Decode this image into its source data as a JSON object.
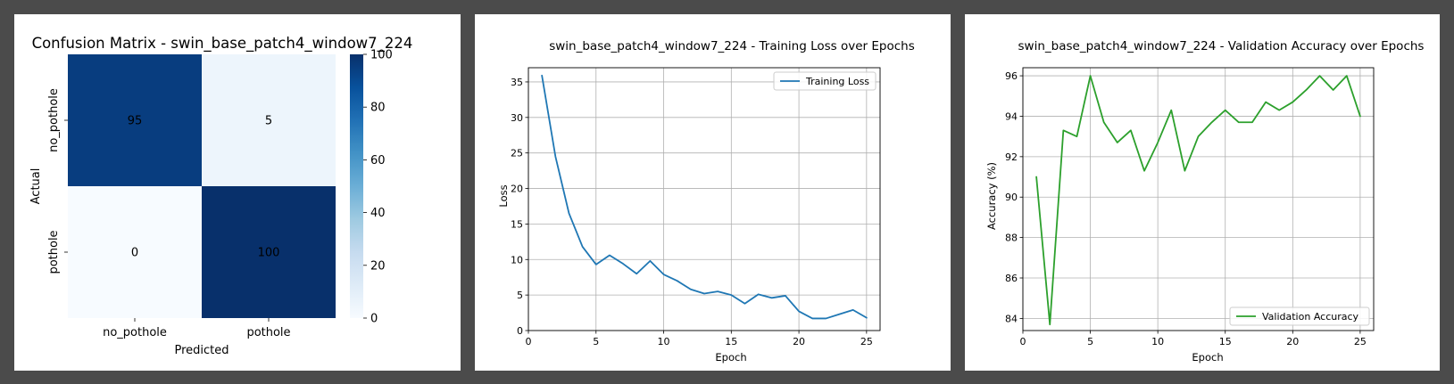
{
  "chart_data": [
    {
      "type": "heatmap",
      "title": "Confusion Matrix - swin_base_patch4_window7_224",
      "xlabel": "Predicted",
      "ylabel": "Actual",
      "x_categories": [
        "no_pothole",
        "pothole"
      ],
      "y_categories": [
        "no_pothole",
        "pothole"
      ],
      "values": [
        [
          95,
          5
        ],
        [
          0,
          100
        ]
      ],
      "colorbar_range": [
        0,
        100
      ],
      "colorbar_ticks": [
        0,
        20,
        40,
        60,
        80,
        100
      ],
      "colormap": "Blues"
    },
    {
      "type": "line",
      "title": "swin_base_patch4_window7_224 - Training Loss over Epochs",
      "xlabel": "Epoch",
      "ylabel": "Loss",
      "xlim": [
        0,
        26
      ],
      "ylim": [
        0,
        37
      ],
      "xticks": [
        0,
        5,
        10,
        15,
        20,
        25
      ],
      "yticks": [
        0,
        5,
        10,
        15,
        20,
        25,
        30,
        35
      ],
      "grid": true,
      "legend": "top-right",
      "series": [
        {
          "name": "Training Loss",
          "color": "#1f77b4",
          "x": [
            1,
            2,
            3,
            4,
            5,
            6,
            7,
            8,
            9,
            10,
            11,
            12,
            13,
            14,
            15,
            16,
            17,
            18,
            19,
            20,
            21,
            22,
            23,
            24,
            25
          ],
          "values": [
            35.9,
            24.5,
            16.5,
            11.8,
            9.3,
            10.6,
            9.4,
            8.0,
            9.8,
            7.9,
            7.0,
            5.8,
            5.2,
            5.5,
            5.0,
            3.8,
            5.1,
            4.6,
            4.9,
            2.7,
            1.7,
            1.7,
            2.3,
            2.9,
            1.8
          ]
        }
      ]
    },
    {
      "type": "line",
      "title": "swin_base_patch4_window7_224 - Validation Accuracy over Epochs",
      "xlabel": "Epoch",
      "ylabel": "Accuracy (%)",
      "xlim": [
        0,
        26
      ],
      "ylim": [
        83.4,
        96.4
      ],
      "xticks": [
        0,
        5,
        10,
        15,
        20,
        25
      ],
      "yticks": [
        84,
        86,
        88,
        90,
        92,
        94,
        96
      ],
      "grid": true,
      "legend": "bottom-right",
      "series": [
        {
          "name": "Validation Accuracy",
          "color": "#2ca02c",
          "x": [
            1,
            2,
            3,
            4,
            5,
            6,
            7,
            8,
            9,
            10,
            11,
            12,
            13,
            14,
            15,
            16,
            17,
            18,
            19,
            20,
            21,
            22,
            23,
            24,
            25
          ],
          "values": [
            91.0,
            83.7,
            93.3,
            93.0,
            96.0,
            93.7,
            92.7,
            93.3,
            91.3,
            92.7,
            94.3,
            91.3,
            93.0,
            93.7,
            94.3,
            93.7,
            93.7,
            94.7,
            94.3,
            94.7,
            95.3,
            96.0,
            95.3,
            96.0,
            94.0
          ]
        }
      ]
    }
  ]
}
